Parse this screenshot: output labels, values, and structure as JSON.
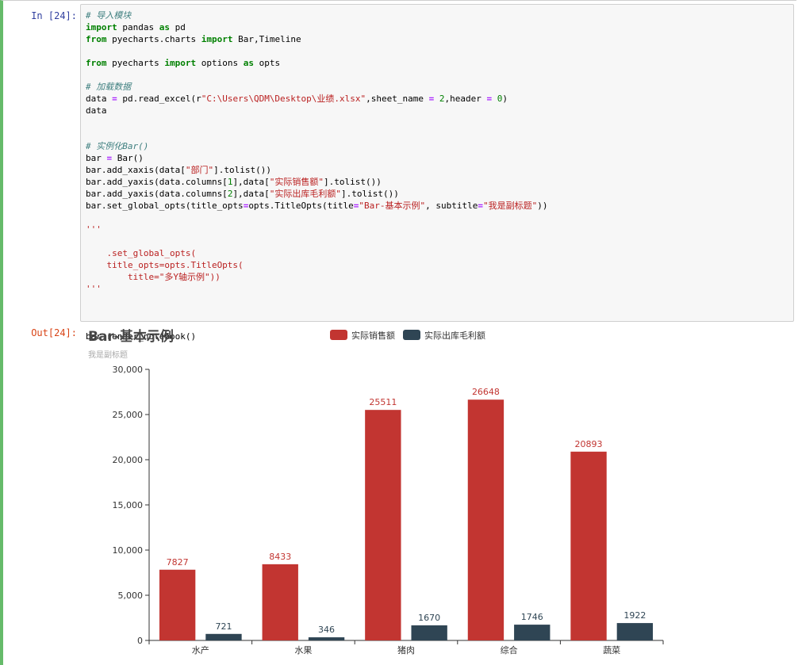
{
  "cell": {
    "in_prompt": "In  [24]:",
    "out_prompt": "Out[24]:"
  },
  "code_lines": [
    [
      [
        "cm",
        "# 导入模块"
      ]
    ],
    [
      [
        "kw",
        "import"
      ],
      [
        "pl",
        " pandas "
      ],
      [
        "kw",
        "as"
      ],
      [
        "pl",
        " pd"
      ]
    ],
    [
      [
        "kw",
        "from"
      ],
      [
        "pl",
        " pyecharts.charts "
      ],
      [
        "kw",
        "import"
      ],
      [
        "pl",
        " Bar,Timeline"
      ]
    ],
    [],
    [
      [
        "kw",
        "from"
      ],
      [
        "pl",
        " pyecharts "
      ],
      [
        "kw",
        "import"
      ],
      [
        "pl",
        " options "
      ],
      [
        "kw",
        "as"
      ],
      [
        "pl",
        " opts"
      ]
    ],
    [],
    [
      [
        "cm",
        "# 加载数据"
      ]
    ],
    [
      [
        "pl",
        "data "
      ],
      [
        "op",
        "="
      ],
      [
        "pl",
        " pd.read_excel(r"
      ],
      [
        "st",
        "\"C:\\Users\\QDM\\Desktop\\业绩.xlsx\""
      ],
      [
        "pl",
        ",sheet_name "
      ],
      [
        "op",
        "="
      ],
      [
        "pl",
        " "
      ],
      [
        "nm",
        "2"
      ],
      [
        "pl",
        ",header "
      ],
      [
        "op",
        "="
      ],
      [
        "pl",
        " "
      ],
      [
        "nm",
        "0"
      ],
      [
        "pl",
        ")"
      ]
    ],
    [
      [
        "pl",
        "data"
      ]
    ],
    [],
    [],
    [
      [
        "cm",
        "# 实例化Bar()"
      ]
    ],
    [
      [
        "pl",
        "bar "
      ],
      [
        "op",
        "="
      ],
      [
        "pl",
        " Bar()"
      ]
    ],
    [
      [
        "pl",
        "bar.add_xaxis(data["
      ],
      [
        "st",
        "\"部门\""
      ],
      [
        "pl",
        "].tolist())"
      ]
    ],
    [
      [
        "pl",
        "bar.add_yaxis(data.columns["
      ],
      [
        "nm",
        "1"
      ],
      [
        "pl",
        "],data["
      ],
      [
        "st",
        "\"实际销售额\""
      ],
      [
        "pl",
        "].tolist())"
      ]
    ],
    [
      [
        "pl",
        "bar.add_yaxis(data.columns["
      ],
      [
        "nm",
        "2"
      ],
      [
        "pl",
        "],data["
      ],
      [
        "st",
        "\"实际出库毛利额\""
      ],
      [
        "pl",
        "].tolist())"
      ]
    ],
    [
      [
        "pl",
        "bar.set_global_opts(title_opts"
      ],
      [
        "op",
        "="
      ],
      [
        "pl",
        "opts.TitleOpts(title"
      ],
      [
        "op",
        "="
      ],
      [
        "st",
        "\"Bar-基本示例\""
      ],
      [
        "pl",
        ", subtitle"
      ],
      [
        "op",
        "="
      ],
      [
        "st",
        "\"我是副标题\""
      ],
      [
        "pl",
        "))"
      ]
    ],
    [],
    [
      [
        "st",
        "'''"
      ]
    ],
    [],
    [
      [
        "st",
        "    .set_global_opts("
      ]
    ],
    [
      [
        "st",
        "    title_opts=opts.TitleOpts("
      ]
    ],
    [
      [
        "st",
        "        title=\"多Y轴示例\"))"
      ]
    ],
    [
      [
        "st",
        "'''"
      ]
    ],
    [],
    [],
    [],
    [
      [
        "pl",
        "bar.render_notebook()"
      ]
    ]
  ],
  "chart_data": {
    "type": "bar",
    "title": "Bar-基本示例",
    "subtitle": "我是副标题",
    "categories": [
      "水产",
      "水果",
      "猪肉",
      "综合",
      "蔬菜"
    ],
    "series": [
      {
        "name": "实际销售额",
        "color": "#c23531",
        "values": [
          7827,
          8433,
          25511,
          26648,
          20893
        ]
      },
      {
        "name": "实际出库毛利额",
        "color": "#2f4554",
        "values": [
          721,
          346,
          1670,
          1746,
          1922
        ]
      }
    ],
    "ylim": [
      0,
      30000
    ],
    "yticks": [
      0,
      5000,
      10000,
      15000,
      20000,
      25000,
      30000
    ],
    "ytick_labels": [
      "0",
      "5,000",
      "10,000",
      "15,000",
      "20,000",
      "25,000",
      "30,000"
    ],
    "xlabel": "",
    "ylabel": "",
    "grid": false,
    "legend_position": "top-center"
  }
}
